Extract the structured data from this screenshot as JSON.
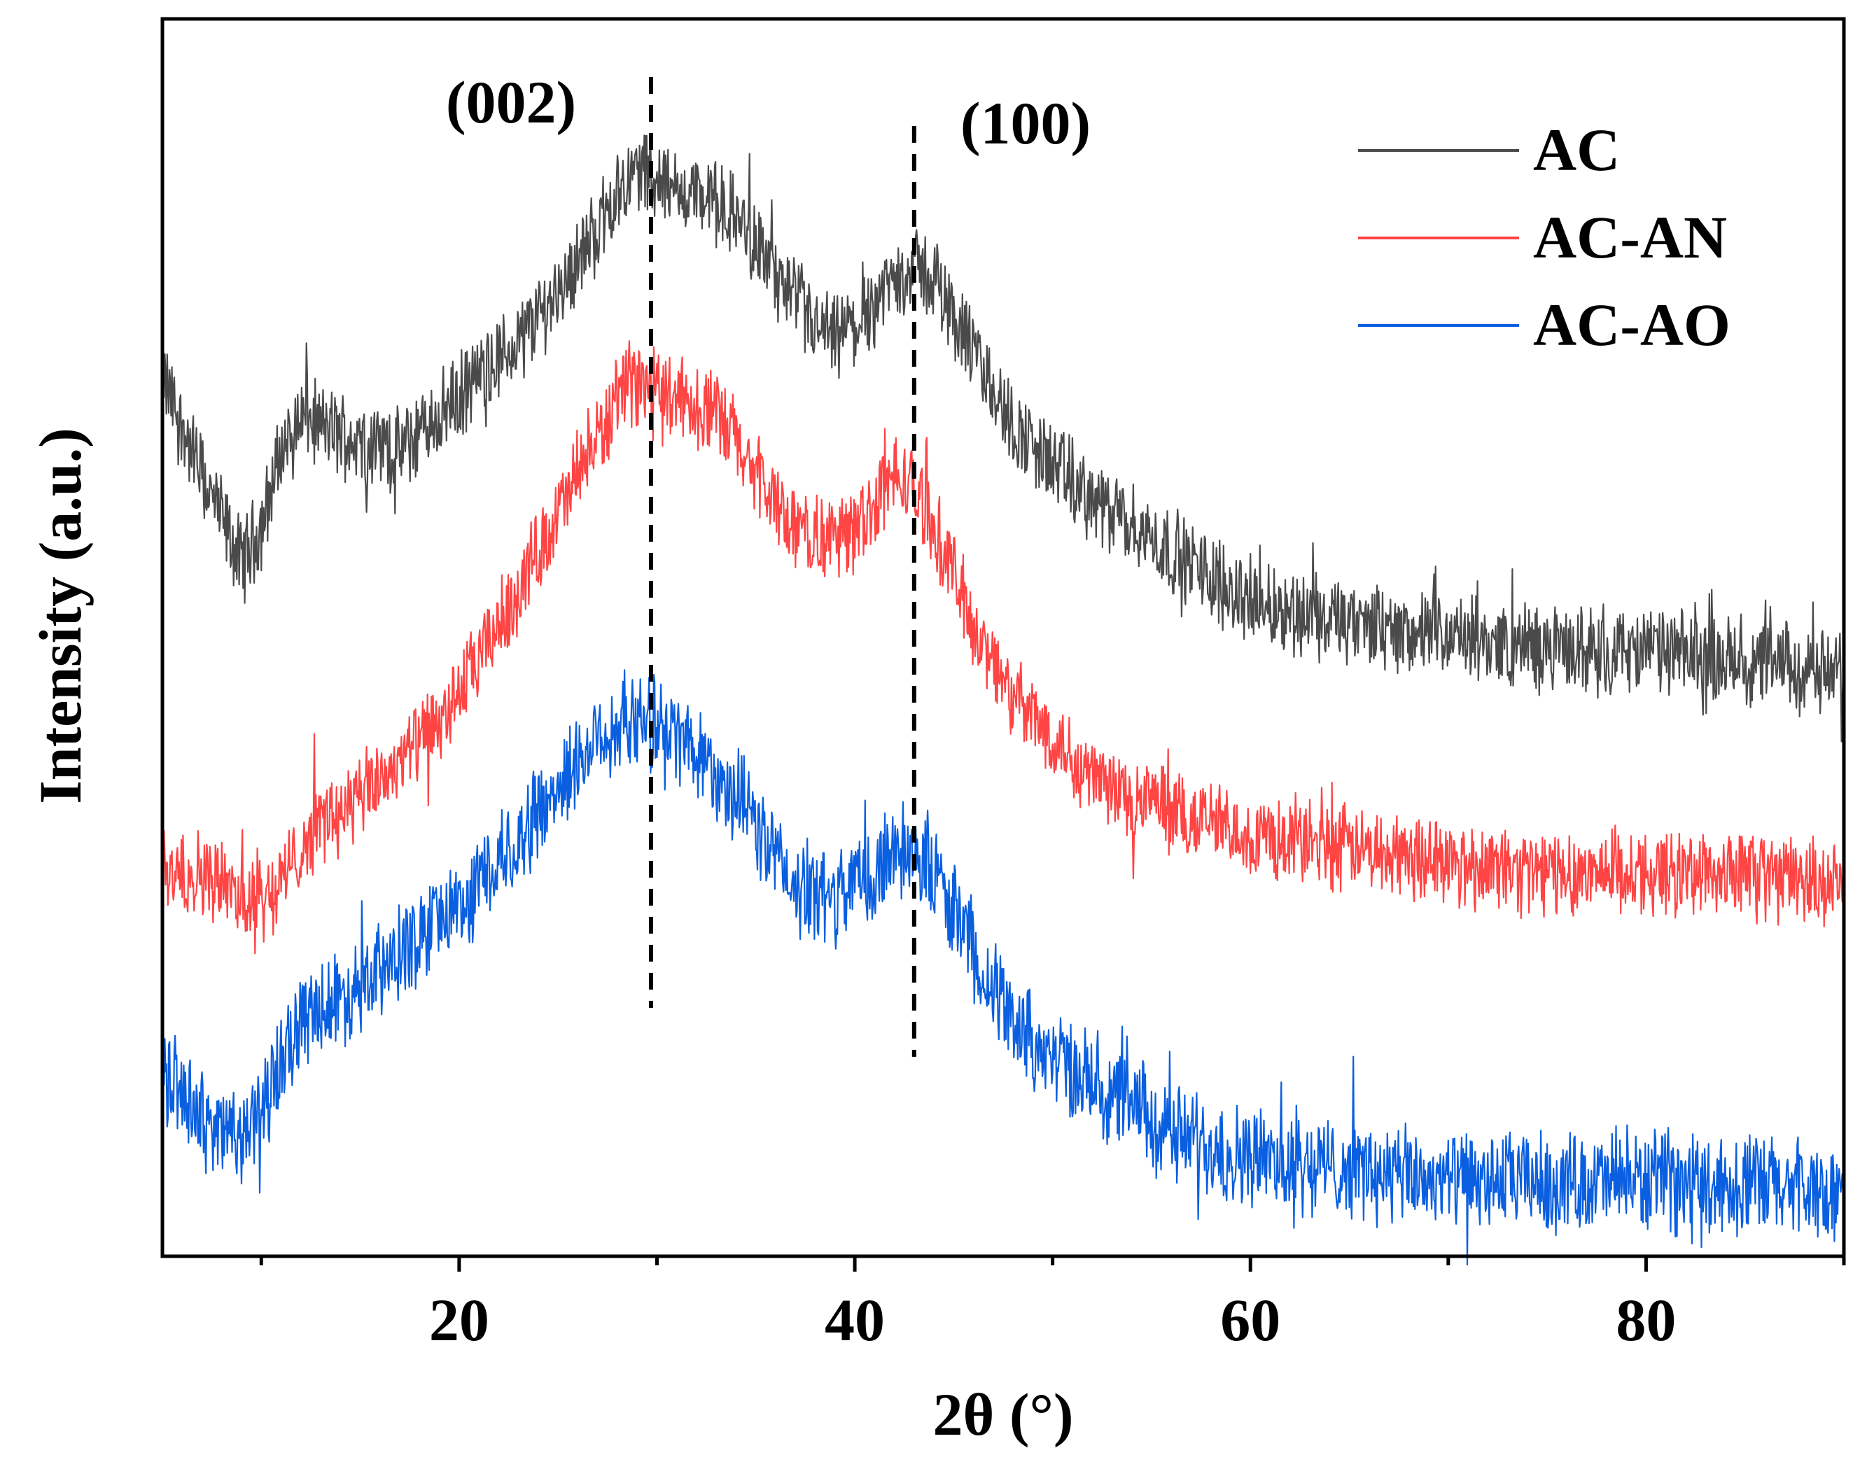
{
  "chart_data": {
    "type": "line",
    "title": "",
    "xlabel": "2θ (°)",
    "ylabel": "Intensity (a.u.)",
    "xlim": [
      5,
      90
    ],
    "ylim": [
      0,
      1
    ],
    "x_major_ticks": [
      20,
      40,
      60,
      80
    ],
    "x_minor_ticks": [
      10,
      30,
      50,
      70,
      90
    ],
    "legend_position": "top-right",
    "grid": false,
    "annotations": [
      {
        "label": "(002)",
        "x": 29.7
      },
      {
        "label": "(100)",
        "x": 43.0
      }
    ],
    "series": [
      {
        "name": "AC",
        "color": "#4a4a4a",
        "noise": 0.03,
        "x": [
          5,
          7,
          9,
          10,
          11,
          12,
          13,
          15,
          17,
          19,
          21,
          23,
          25,
          27,
          28,
          29,
          30,
          31,
          32,
          33,
          34,
          35,
          36,
          37,
          38,
          39,
          40,
          41,
          42,
          43,
          44,
          45,
          46,
          47,
          48,
          50,
          52,
          54,
          56,
          58,
          60,
          65,
          70,
          75,
          80,
          85,
          90
        ],
        "values": [
          0.71,
          0.63,
          0.56,
          0.59,
          0.65,
          0.68,
          0.67,
          0.66,
          0.65,
          0.68,
          0.71,
          0.74,
          0.78,
          0.83,
          0.86,
          0.88,
          0.87,
          0.86,
          0.86,
          0.85,
          0.84,
          0.82,
          0.79,
          0.77,
          0.75,
          0.74,
          0.75,
          0.77,
          0.79,
          0.8,
          0.79,
          0.76,
          0.73,
          0.7,
          0.67,
          0.64,
          0.61,
          0.59,
          0.57,
          0.55,
          0.53,
          0.51,
          0.5,
          0.49,
          0.49,
          0.48,
          0.47
        ]
      },
      {
        "name": "AC-AN",
        "color": "#ff4444",
        "noise": 0.03,
        "x": [
          5,
          7,
          9,
          10,
          11,
          12,
          13,
          15,
          17,
          19,
          21,
          23,
          25,
          27,
          28,
          29,
          30,
          31,
          32,
          33,
          34,
          35,
          36,
          37,
          38,
          39,
          40,
          41,
          42,
          43,
          44,
          45,
          46,
          47,
          48,
          50,
          52,
          54,
          56,
          58,
          60,
          65,
          70,
          75,
          80,
          85,
          90
        ],
        "values": [
          0.32,
          0.31,
          0.29,
          0.29,
          0.3,
          0.33,
          0.35,
          0.37,
          0.4,
          0.43,
          0.48,
          0.54,
          0.6,
          0.66,
          0.69,
          0.71,
          0.7,
          0.7,
          0.69,
          0.68,
          0.66,
          0.63,
          0.61,
          0.59,
          0.58,
          0.58,
          0.59,
          0.61,
          0.63,
          0.62,
          0.59,
          0.55,
          0.51,
          0.48,
          0.45,
          0.42,
          0.39,
          0.37,
          0.36,
          0.35,
          0.34,
          0.33,
          0.32,
          0.31,
          0.31,
          0.31,
          0.3
        ]
      },
      {
        "name": "AC-AO",
        "color": "#0a5fe0",
        "noise": 0.035,
        "x": [
          5,
          7,
          8,
          9,
          10,
          11,
          12,
          13,
          15,
          17,
          19,
          21,
          23,
          25,
          27,
          28,
          29,
          30,
          31,
          32,
          33,
          34,
          35,
          36,
          37,
          38,
          39,
          40,
          41,
          42,
          43,
          44,
          45,
          46,
          47,
          48,
          50,
          52,
          54,
          56,
          58,
          60,
          65,
          70,
          75,
          80,
          85,
          90
        ],
        "values": [
          0.15,
          0.11,
          0.1,
          0.1,
          0.11,
          0.16,
          0.19,
          0.2,
          0.22,
          0.24,
          0.27,
          0.3,
          0.34,
          0.38,
          0.42,
          0.43,
          0.43,
          0.43,
          0.42,
          0.41,
          0.39,
          0.37,
          0.35,
          0.32,
          0.3,
          0.29,
          0.29,
          0.3,
          0.31,
          0.33,
          0.33,
          0.31,
          0.28,
          0.25,
          0.22,
          0.19,
          0.16,
          0.14,
          0.12,
          0.1,
          0.09,
          0.08,
          0.07,
          0.06,
          0.06,
          0.06,
          0.06,
          0.05
        ]
      }
    ]
  }
}
